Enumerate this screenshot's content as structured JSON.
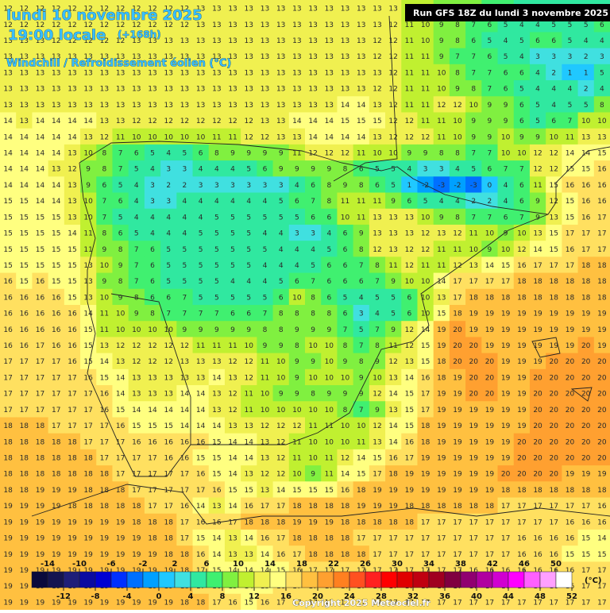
{
  "header": {
    "date": "lundi 10 novembre 2025",
    "time": "19:00 locale",
    "lead": "(+168h)",
    "subtitle": "Windchill / Refroidissement éolien (°C)",
    "run": "Run GFS 18Z du lundi 3 novembre 2025"
  },
  "grid": {
    "rows": [
      [
        12,
        12,
        12,
        12,
        12,
        12,
        12,
        12,
        12,
        12,
        12,
        12,
        13,
        13,
        13,
        13,
        13,
        13,
        13,
        13,
        13,
        13,
        13,
        13,
        13,
        11,
        10,
        9,
        9,
        8,
        7,
        6,
        5,
        4,
        4,
        4,
        5,
        5
      ],
      [
        12,
        12,
        12,
        12,
        12,
        12,
        12,
        12,
        12,
        12,
        12,
        12,
        13,
        13,
        13,
        13,
        13,
        13,
        13,
        13,
        13,
        13,
        13,
        13,
        12,
        11,
        10,
        9,
        8,
        7,
        6,
        5,
        4,
        4,
        5,
        5,
        5,
        6
      ],
      [
        13,
        13,
        13,
        12,
        12,
        12,
        12,
        12,
        13,
        13,
        13,
        13,
        13,
        13,
        13,
        13,
        13,
        13,
        13,
        13,
        13,
        13,
        13,
        12,
        12,
        11,
        10,
        9,
        8,
        6,
        5,
        4,
        5,
        6,
        6,
        5,
        4,
        4
      ],
      [
        13,
        13,
        13,
        13,
        13,
        13,
        13,
        13,
        13,
        13,
        13,
        13,
        13,
        13,
        13,
        13,
        13,
        13,
        13,
        13,
        13,
        13,
        13,
        12,
        12,
        11,
        11,
        9,
        7,
        7,
        6,
        5,
        4,
        3,
        3,
        3,
        2,
        3
      ],
      [
        13,
        13,
        13,
        13,
        13,
        13,
        13,
        13,
        13,
        13,
        13,
        13,
        13,
        13,
        13,
        13,
        13,
        13,
        13,
        13,
        13,
        13,
        13,
        13,
        12,
        11,
        11,
        10,
        8,
        7,
        7,
        6,
        6,
        4,
        2,
        1,
        1,
        5
      ],
      [
        13,
        13,
        13,
        13,
        13,
        13,
        13,
        13,
        13,
        13,
        13,
        13,
        13,
        13,
        13,
        13,
        13,
        13,
        13,
        13,
        13,
        13,
        13,
        12,
        12,
        11,
        11,
        10,
        9,
        8,
        7,
        6,
        5,
        4,
        4,
        4,
        2,
        4
      ],
      [
        13,
        13,
        13,
        13,
        13,
        13,
        13,
        13,
        13,
        13,
        13,
        13,
        13,
        13,
        13,
        13,
        13,
        13,
        13,
        13,
        13,
        14,
        14,
        13,
        12,
        11,
        11,
        12,
        12,
        10,
        9,
        9,
        6,
        5,
        4,
        5,
        5,
        8
      ],
      [
        14,
        13,
        14,
        14,
        14,
        14,
        13,
        13,
        12,
        12,
        12,
        12,
        12,
        12,
        12,
        12,
        13,
        13,
        14,
        14,
        14,
        15,
        15,
        15,
        12,
        12,
        11,
        11,
        10,
        9,
        9,
        9,
        6,
        5,
        6,
        7,
        10,
        10
      ],
      [
        14,
        14,
        14,
        14,
        14,
        13,
        12,
        11,
        10,
        10,
        10,
        10,
        10,
        11,
        11,
        12,
        12,
        13,
        13,
        14,
        14,
        14,
        14,
        13,
        12,
        12,
        12,
        11,
        10,
        9,
        9,
        10,
        9,
        9,
        10,
        11,
        13,
        13
      ],
      [
        14,
        14,
        14,
        14,
        13,
        10,
        8,
        7,
        6,
        5,
        4,
        5,
        6,
        8,
        9,
        9,
        9,
        9,
        11,
        12,
        12,
        12,
        11,
        10,
        10,
        9,
        9,
        8,
        8,
        7,
        7,
        10,
        10,
        12,
        12,
        14,
        14,
        15
      ],
      [
        14,
        14,
        14,
        13,
        12,
        9,
        8,
        7,
        5,
        4,
        3,
        3,
        4,
        4,
        4,
        5,
        6,
        9,
        9,
        9,
        9,
        8,
        6,
        5,
        5,
        4,
        3,
        3,
        4,
        5,
        6,
        7,
        7,
        12,
        12,
        15,
        15,
        16
      ],
      [
        14,
        14,
        14,
        14,
        13,
        9,
        6,
        5,
        4,
        3,
        2,
        2,
        3,
        3,
        3,
        3,
        3,
        3,
        4,
        6,
        8,
        9,
        8,
        6,
        5,
        1,
        -2,
        -3,
        -2,
        -3,
        0,
        4,
        6,
        11,
        15,
        16,
        16,
        16
      ],
      [
        15,
        15,
        14,
        14,
        13,
        10,
        7,
        6,
        4,
        3,
        3,
        4,
        4,
        4,
        4,
        4,
        4,
        5,
        6,
        7,
        8,
        11,
        11,
        11,
        9,
        6,
        5,
        4,
        4,
        2,
        2,
        4,
        6,
        9,
        12,
        15,
        16,
        16
      ],
      [
        15,
        15,
        15,
        15,
        13,
        10,
        7,
        5,
        4,
        4,
        4,
        4,
        4,
        5,
        5,
        5,
        5,
        5,
        5,
        6,
        6,
        10,
        11,
        13,
        13,
        13,
        10,
        9,
        8,
        7,
        7,
        6,
        7,
        9,
        13,
        15,
        16,
        17
      ],
      [
        15,
        15,
        15,
        15,
        14,
        11,
        8,
        6,
        5,
        4,
        4,
        4,
        5,
        5,
        5,
        5,
        4,
        4,
        3,
        3,
        4,
        6,
        9,
        13,
        13,
        13,
        12,
        13,
        12,
        11,
        10,
        9,
        10,
        13,
        15,
        17,
        17,
        17
      ],
      [
        15,
        15,
        15,
        15,
        15,
        11,
        9,
        8,
        7,
        6,
        5,
        5,
        5,
        5,
        5,
        5,
        5,
        4,
        4,
        4,
        5,
        6,
        8,
        12,
        13,
        12,
        12,
        11,
        11,
        10,
        9,
        10,
        12,
        14,
        15,
        16,
        17,
        17
      ],
      [
        15,
        15,
        15,
        15,
        15,
        13,
        10,
        9,
        7,
        6,
        5,
        5,
        5,
        5,
        5,
        5,
        4,
        4,
        4,
        5,
        6,
        6,
        7,
        8,
        11,
        12,
        11,
        11,
        12,
        13,
        14,
        15,
        16,
        17,
        17,
        17,
        18,
        18
      ],
      [
        16,
        15,
        16,
        15,
        15,
        13,
        9,
        8,
        7,
        6,
        5,
        5,
        5,
        5,
        4,
        4,
        4,
        5,
        6,
        7,
        6,
        6,
        6,
        7,
        9,
        10,
        10,
        14,
        17,
        17,
        17,
        17,
        18,
        18,
        18,
        18,
        18,
        18
      ],
      [
        16,
        16,
        16,
        16,
        15,
        13,
        10,
        9,
        8,
        6,
        6,
        7,
        5,
        5,
        5,
        5,
        5,
        6,
        10,
        8,
        6,
        5,
        4,
        5,
        5,
        6,
        10,
        13,
        17,
        18,
        18,
        18,
        18,
        18,
        18,
        18,
        18,
        18
      ],
      [
        16,
        16,
        16,
        16,
        16,
        14,
        11,
        10,
        9,
        8,
        7,
        7,
        7,
        7,
        6,
        6,
        7,
        8,
        8,
        8,
        8,
        6,
        3,
        4,
        5,
        6,
        10,
        15,
        18,
        19,
        19,
        19,
        19,
        19,
        19,
        19,
        19,
        19
      ],
      [
        16,
        16,
        16,
        16,
        16,
        15,
        11,
        10,
        10,
        10,
        10,
        9,
        9,
        9,
        9,
        9,
        8,
        8,
        9,
        9,
        9,
        7,
        5,
        7,
        9,
        12,
        14,
        19,
        20,
        19,
        19,
        19,
        19,
        19,
        19,
        19,
        19,
        19
      ],
      [
        16,
        16,
        17,
        16,
        16,
        15,
        13,
        12,
        12,
        12,
        12,
        12,
        11,
        11,
        11,
        10,
        9,
        9,
        8,
        10,
        10,
        8,
        7,
        8,
        11,
        12,
        15,
        19,
        20,
        20,
        19,
        19,
        19,
        19,
        19,
        19,
        20,
        19
      ],
      [
        17,
        17,
        17,
        17,
        16,
        15,
        14,
        13,
        12,
        12,
        12,
        13,
        13,
        13,
        12,
        12,
        11,
        10,
        9,
        9,
        10,
        9,
        8,
        9,
        12,
        13,
        15,
        18,
        20,
        20,
        20,
        19,
        19,
        19,
        20,
        20,
        20,
        20
      ],
      [
        17,
        17,
        17,
        17,
        17,
        16,
        15,
        14,
        13,
        13,
        13,
        13,
        13,
        14,
        13,
        12,
        11,
        10,
        9,
        10,
        10,
        10,
        9,
        10,
        13,
        14,
        16,
        18,
        19,
        20,
        20,
        19,
        19,
        20,
        20,
        20,
        20,
        20
      ],
      [
        17,
        17,
        17,
        17,
        17,
        17,
        16,
        14,
        13,
        13,
        13,
        14,
        14,
        13,
        12,
        11,
        10,
        9,
        9,
        8,
        9,
        9,
        9,
        12,
        14,
        15,
        17,
        19,
        19,
        20,
        20,
        19,
        19,
        20,
        20,
        20,
        20,
        20
      ],
      [
        17,
        17,
        17,
        17,
        17,
        17,
        16,
        15,
        14,
        14,
        14,
        14,
        14,
        13,
        12,
        11,
        10,
        10,
        10,
        10,
        10,
        8,
        7,
        9,
        13,
        15,
        17,
        19,
        19,
        19,
        19,
        19,
        19,
        20,
        20,
        20,
        20,
        20
      ],
      [
        18,
        18,
        18,
        17,
        17,
        17,
        17,
        16,
        15,
        15,
        15,
        14,
        14,
        14,
        13,
        13,
        12,
        12,
        12,
        11,
        11,
        10,
        10,
        12,
        14,
        15,
        18,
        19,
        19,
        19,
        19,
        19,
        19,
        20,
        20,
        20,
        20,
        20
      ],
      [
        18,
        18,
        18,
        18,
        18,
        17,
        17,
        17,
        16,
        16,
        16,
        16,
        16,
        15,
        14,
        14,
        13,
        12,
        11,
        10,
        10,
        10,
        11,
        13,
        14,
        16,
        18,
        19,
        19,
        19,
        19,
        19,
        20,
        20,
        20,
        20,
        20,
        20
      ],
      [
        18,
        18,
        18,
        18,
        18,
        18,
        17,
        17,
        17,
        17,
        16,
        16,
        15,
        15,
        14,
        14,
        13,
        12,
        11,
        10,
        11,
        12,
        14,
        15,
        16,
        17,
        19,
        19,
        19,
        19,
        19,
        19,
        20,
        20,
        20,
        20,
        20,
        20
      ],
      [
        18,
        18,
        18,
        18,
        18,
        18,
        18,
        17,
        17,
        17,
        17,
        17,
        16,
        15,
        14,
        13,
        12,
        12,
        10,
        9,
        11,
        14,
        15,
        17,
        18,
        19,
        19,
        19,
        19,
        19,
        19,
        20,
        20,
        20,
        20,
        19,
        19,
        19
      ],
      [
        18,
        18,
        19,
        19,
        19,
        18,
        18,
        18,
        17,
        17,
        17,
        17,
        17,
        16,
        15,
        15,
        13,
        14,
        15,
        15,
        15,
        16,
        18,
        19,
        19,
        19,
        19,
        19,
        19,
        19,
        19,
        18,
        18,
        18,
        18,
        18,
        18,
        18
      ],
      [
        19,
        19,
        19,
        19,
        18,
        18,
        18,
        18,
        18,
        17,
        17,
        16,
        14,
        13,
        14,
        16,
        17,
        17,
        18,
        18,
        18,
        18,
        19,
        19,
        19,
        18,
        18,
        18,
        18,
        18,
        18,
        17,
        17,
        17,
        17,
        17,
        17,
        16
      ],
      [
        19,
        19,
        19,
        19,
        19,
        19,
        19,
        19,
        18,
        18,
        18,
        17,
        16,
        16,
        17,
        18,
        18,
        18,
        19,
        19,
        19,
        18,
        18,
        18,
        18,
        18,
        17,
        17,
        17,
        17,
        17,
        17,
        17,
        17,
        17,
        16,
        16,
        16
      ],
      [
        19,
        19,
        19,
        19,
        19,
        19,
        19,
        19,
        19,
        18,
        18,
        17,
        15,
        14,
        13,
        14,
        16,
        17,
        18,
        18,
        18,
        18,
        17,
        17,
        17,
        17,
        17,
        17,
        17,
        17,
        17,
        17,
        16,
        16,
        16,
        16,
        15,
        14
      ],
      [
        19,
        19,
        19,
        19,
        19,
        19,
        19,
        19,
        19,
        19,
        18,
        18,
        16,
        14,
        13,
        13,
        14,
        16,
        17,
        18,
        18,
        18,
        18,
        17,
        17,
        17,
        17,
        17,
        17,
        17,
        17,
        17,
        16,
        16,
        16,
        15,
        15,
        15
      ],
      [
        19,
        19,
        19,
        19,
        19,
        19,
        19,
        19,
        19,
        19,
        19,
        18,
        17,
        15,
        14,
        14,
        14,
        15,
        16,
        17,
        17,
        17,
        17,
        17,
        17,
        17,
        17,
        17,
        17,
        16,
        16,
        16,
        16,
        16,
        16,
        16,
        17,
        17
      ],
      [
        19,
        19,
        19,
        19,
        19,
        19,
        19,
        19,
        19,
        19,
        19,
        18,
        17,
        16,
        15,
        14,
        15,
        16,
        17,
        17,
        17,
        17,
        17,
        17,
        17,
        17,
        17,
        17,
        17,
        17,
        17,
        16,
        16,
        16,
        16,
        16,
        17,
        17
      ],
      [
        19,
        19,
        19,
        19,
        19,
        19,
        19,
        19,
        19,
        19,
        19,
        18,
        18,
        17,
        16,
        15,
        16,
        17,
        17,
        17,
        17,
        17,
        17,
        17,
        17,
        17,
        17,
        17,
        17,
        17,
        17,
        17,
        17,
        17,
        17,
        17,
        17,
        17
      ]
    ]
  },
  "legend": {
    "ticks": [
      -14,
      -12,
      -10,
      -8,
      -6,
      -4,
      -2,
      0,
      2,
      4,
      6,
      8,
      10,
      12,
      14,
      16,
      18,
      20,
      22,
      24,
      26,
      28,
      30,
      32,
      34,
      36,
      38,
      40,
      42,
      44,
      46,
      48,
      50,
      52
    ],
    "colors": [
      "#0a0a3c",
      "#141450",
      "#1e1e78",
      "#0a0aa0",
      "#0000d2",
      "#0030ff",
      "#0070ff",
      "#00a0ff",
      "#20c8ff",
      "#40e0e0",
      "#30e8a0",
      "#40f070",
      "#80f040",
      "#c0f030",
      "#f0f050",
      "#ffff80",
      "#ffe060",
      "#ffc040",
      "#ffa030",
      "#ff8020",
      "#ff5020",
      "#ff2020",
      "#ff0000",
      "#e00000",
      "#c00010",
      "#a00020",
      "#800040",
      "#900070",
      "#b000a0",
      "#d000d0",
      "#ff00ff",
      "#ff60ff",
      "#ffa0ff",
      "#ffffff"
    ],
    "unit": "(°C)"
  },
  "footer": {
    "copyright": "Copyright 2025 Meteociel.fr"
  }
}
